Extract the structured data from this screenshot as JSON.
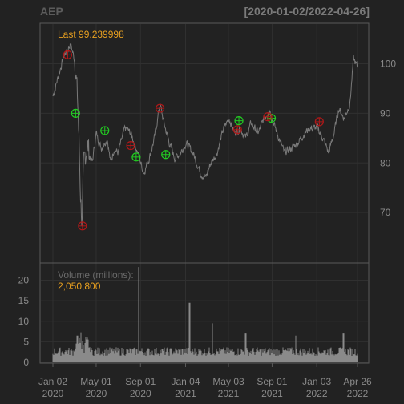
{
  "header": {
    "symbol": "AEP",
    "date_range": "[2020-01-02/2022-04-26]"
  },
  "price_panel": {
    "last_label": "Last 99.239998"
  },
  "volume_panel": {
    "title": "Volume (millions):",
    "value": "2,050,800"
  },
  "colors": {
    "background": "#222222",
    "grid": "#303030",
    "frame": "#5a5a5a",
    "price_line": "#7a7a7a",
    "volume_bar": "#8a8a8a",
    "buy_marker": "#22cc22",
    "sell_marker": "#b01818",
    "label": "#8a8a8a",
    "accent": "#e8a020"
  },
  "chart_data": [
    {
      "type": "line",
      "title": "AEP",
      "date_range": "[2020-01-02/2022-04-26]",
      "x": [
        "2020-01-02",
        "2020-01-15",
        "2020-02-01",
        "2020-02-20",
        "2020-03-05",
        "2020-03-12",
        "2020-03-18",
        "2020-03-23",
        "2020-03-27",
        "2020-04-05",
        "2020-04-20",
        "2020-05-01",
        "2020-05-15",
        "2020-06-01",
        "2020-06-10",
        "2020-06-20",
        "2020-07-01",
        "2020-07-20",
        "2020-08-05",
        "2020-08-25",
        "2020-09-10",
        "2020-09-25",
        "2020-10-10",
        "2020-10-25",
        "2020-11-05",
        "2020-11-20",
        "2020-12-05",
        "2020-12-20",
        "2021-01-05",
        "2021-01-25",
        "2021-02-15",
        "2021-03-01",
        "2021-03-15",
        "2021-04-01",
        "2021-04-20",
        "2021-05-05",
        "2021-05-20",
        "2021-06-05",
        "2021-06-20",
        "2021-07-05",
        "2021-07-25",
        "2021-08-10",
        "2021-08-25",
        "2021-09-05",
        "2021-09-20",
        "2021-10-05",
        "2021-10-25",
        "2021-11-10",
        "2021-11-30",
        "2021-12-15",
        "2022-01-05",
        "2022-01-20",
        "2022-02-05",
        "2022-02-20",
        "2022-03-05",
        "2022-03-20",
        "2022-04-05",
        "2022-04-15",
        "2022-04-26"
      ],
      "y": [
        93.5,
        97,
        101.5,
        104,
        100,
        90,
        75,
        68,
        78,
        84,
        80,
        86,
        83,
        85,
        80,
        83,
        82,
        87,
        86,
        82,
        78,
        81,
        85,
        92,
        88,
        84,
        81,
        82,
        84,
        82,
        78,
        77,
        80,
        82,
        87,
        89,
        86,
        87,
        85,
        88,
        86,
        89,
        91,
        88,
        85,
        82,
        83,
        84,
        86,
        87,
        87,
        85,
        82,
        86,
        91,
        89,
        92,
        101,
        99.24
      ],
      "ylim": [
        60,
        108
      ],
      "y_ticks": [
        70,
        80,
        90,
        100
      ],
      "x_ticks": [
        {
          "date": "2020-01-02",
          "month": "Jan 02",
          "year": "2020"
        },
        {
          "date": "2020-05-01",
          "month": "May 01",
          "year": "2020"
        },
        {
          "date": "2020-09-01",
          "month": "Sep 01",
          "year": "2020"
        },
        {
          "date": "2021-01-04",
          "month": "Jan 04",
          "year": "2021"
        },
        {
          "date": "2021-05-03",
          "month": "May 03",
          "year": "2021"
        },
        {
          "date": "2021-09-01",
          "month": "Sep 01",
          "year": "2021"
        },
        {
          "date": "2022-01-03",
          "month": "Jan 03",
          "year": "2022"
        },
        {
          "date": "2022-04-26",
          "month": "Apr 26",
          "year": "2022"
        }
      ],
      "buy_markers": [
        {
          "date": "2020-03-05",
          "price": 90
        },
        {
          "date": "2020-05-25",
          "price": 86.5
        },
        {
          "date": "2020-08-20",
          "price": 81.2
        },
        {
          "date": "2020-11-10",
          "price": 81.7
        },
        {
          "date": "2021-06-01",
          "price": 88.5
        },
        {
          "date": "2021-08-30",
          "price": 89
        }
      ],
      "sell_markers": [
        {
          "date": "2020-02-12",
          "price": 101.8
        },
        {
          "date": "2020-03-24",
          "price": 67.3
        },
        {
          "date": "2020-08-05",
          "price": 83.5
        },
        {
          "date": "2020-10-25",
          "price": 91
        },
        {
          "date": "2021-05-28",
          "price": 86.7
        },
        {
          "date": "2021-08-20",
          "price": 89.3
        },
        {
          "date": "2022-01-10",
          "price": 88.3
        }
      ],
      "last": 99.239998
    },
    {
      "type": "bar",
      "title": "Volume (millions):",
      "last_value": "2,050,800",
      "ylim": [
        0,
        24
      ],
      "y_ticks": [
        0,
        5,
        10,
        15,
        20
      ],
      "baseline": 2.6,
      "spikes": [
        {
          "date": "2020-03-10",
          "value": 6.5
        },
        {
          "date": "2020-03-20",
          "value": 7.3
        },
        {
          "date": "2020-04-02",
          "value": 6.2
        },
        {
          "date": "2020-08-27",
          "value": 23.2
        },
        {
          "date": "2021-01-15",
          "value": 14.5
        },
        {
          "date": "2021-03-20",
          "value": 9.5
        },
        {
          "date": "2021-06-20",
          "value": 7
        },
        {
          "date": "2021-11-05",
          "value": 6.5
        },
        {
          "date": "2022-03-18",
          "value": 7
        }
      ]
    }
  ]
}
